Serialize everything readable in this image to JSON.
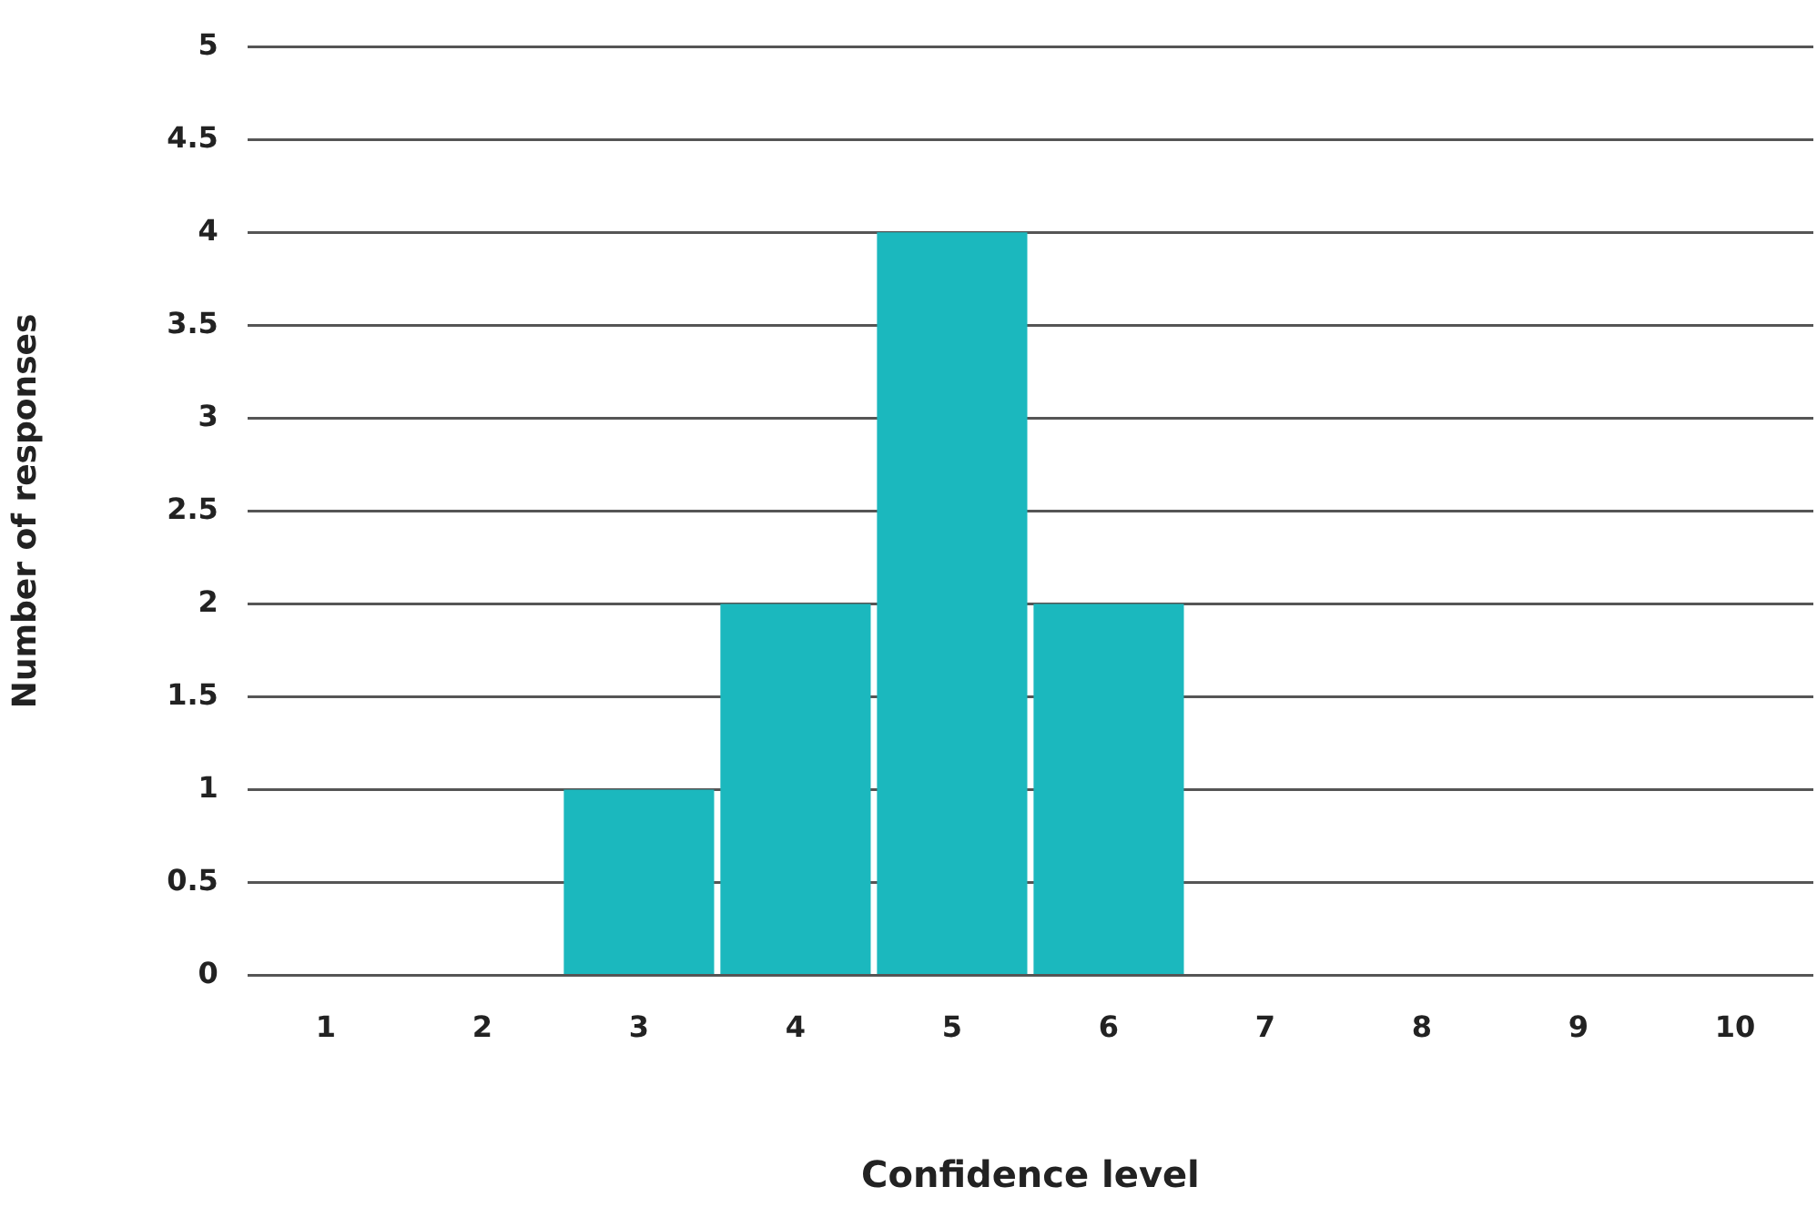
{
  "chart_data": {
    "type": "bar",
    "xlabel": "Confidence level",
    "ylabel": "Number of responses",
    "categories": [
      "1",
      "2",
      "3",
      "4",
      "5",
      "6",
      "7",
      "8",
      "9",
      "10"
    ],
    "values": [
      0,
      0,
      1,
      2,
      4,
      2,
      0,
      0,
      0,
      0
    ],
    "color": "#1bb8be",
    "ylim": [
      0,
      5
    ],
    "yticks": [
      0,
      0.5,
      1,
      1.5,
      2,
      2.5,
      3,
      3.5,
      4,
      4.5,
      5
    ],
    "grid": "y",
    "legend": false
  }
}
